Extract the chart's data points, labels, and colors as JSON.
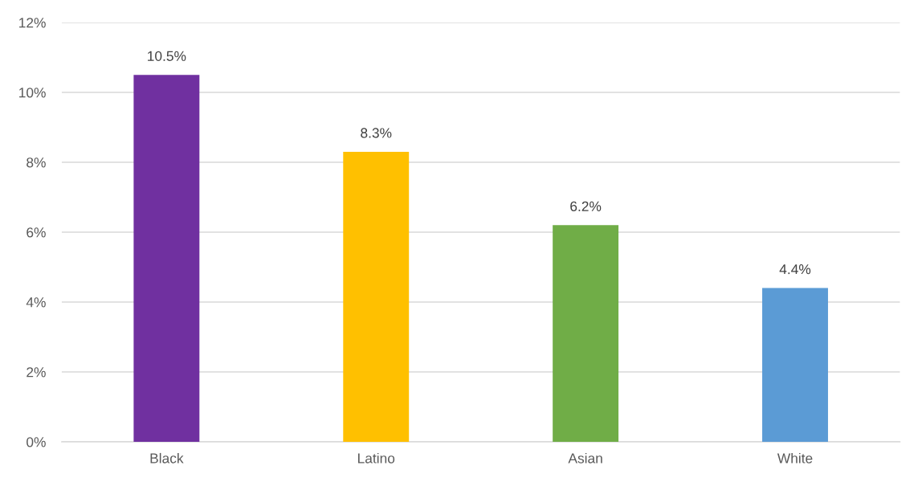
{
  "chart_data": {
    "type": "bar",
    "categories": [
      "Black",
      "Latino",
      "Asian",
      "White"
    ],
    "values": [
      10.5,
      8.3,
      6.2,
      4.4
    ],
    "colors": [
      "#7030a0",
      "#ffc000",
      "#70ad47",
      "#5b9bd5"
    ],
    "value_labels": [
      "10.5%",
      "8.3%",
      "6.2%",
      "4.4%"
    ],
    "ylim": [
      0,
      12
    ],
    "yticks": [
      {
        "value": 0,
        "label": "0%"
      },
      {
        "value": 2,
        "label": "2%"
      },
      {
        "value": 4,
        "label": "4%"
      },
      {
        "value": 6,
        "label": "6%"
      },
      {
        "value": 8,
        "label": "8%"
      },
      {
        "value": 10,
        "label": "10%"
      },
      {
        "value": 12,
        "label": "12%"
      }
    ],
    "grid": "y",
    "legend": false
  }
}
